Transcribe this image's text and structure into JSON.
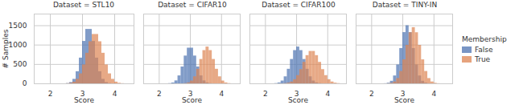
{
  "chart_data": {
    "type": "histogram",
    "xlabel": "Score",
    "ylabel": "# Samples",
    "legend_title": "Membership",
    "legend": "right",
    "grid": true,
    "xlim": [
      1.5,
      4.6
    ],
    "xticks": [
      2,
      3,
      4
    ],
    "ylim": [
      0,
      1800
    ],
    "yticks": [
      0,
      500,
      1000,
      1500
    ],
    "bins": [
      2.0,
      2.1,
      2.2,
      2.3,
      2.4,
      2.5,
      2.6,
      2.7,
      2.8,
      2.9,
      3.0,
      3.1,
      3.2,
      3.3,
      3.4,
      3.5,
      3.6,
      3.7,
      3.8,
      3.9,
      4.0,
      4.1,
      4.2,
      4.3,
      4.4,
      4.5,
      4.6
    ],
    "panels": [
      {
        "title": "Dataset = STL10",
        "series": [
          {
            "name": "False",
            "color": "#4c72b0",
            "values": [
              0,
              0,
              0,
              0,
              0,
              7,
              33,
              116,
              313,
              664,
              1095,
              1405,
              1405,
              1095,
              664,
              313,
              116,
              33,
              7,
              0,
              0,
              0,
              0,
              0,
              0,
              0
            ]
          },
          {
            "name": "True",
            "color": "#dd8452",
            "values": [
              0,
              0,
              0,
              0,
              0,
              4,
              14,
              44,
              116,
              257,
              488,
              789,
              1086,
              1274,
              1274,
              1086,
              789,
              488,
              257,
              116,
              44,
              14,
              4,
              0,
              0,
              0
            ]
          }
        ]
      },
      {
        "title": "Dataset = CIFAR10",
        "series": [
          {
            "name": "False",
            "color": "#4c72b0",
            "values": [
              0,
              0,
              0,
              5,
              22,
              76,
              205,
              435,
              717,
              921,
              921,
              717,
              435,
              205,
              76,
              22,
              5,
              0,
              0,
              0,
              0,
              0,
              0,
              0,
              0,
              0
            ]
          },
          {
            "name": "True",
            "color": "#dd8452",
            "values": [
              0,
              0,
              0,
              0,
              0,
              0,
              0,
              0,
              6,
              23,
              72,
              181,
              376,
              629,
              858,
              950,
              858,
              629,
              376,
              181,
              72,
              23,
              6,
              0,
              0,
              0
            ]
          }
        ]
      },
      {
        "title": "Dataset = CIFAR100",
        "series": [
          {
            "name": "False",
            "color": "#4c72b0",
            "values": [
              0,
              0,
              0,
              6,
              23,
              72,
              181,
              376,
              629,
              858,
              950,
              858,
              629,
              376,
              181,
              72,
              23,
              6,
              0,
              0,
              0,
              0,
              0,
              0,
              0,
              0
            ]
          },
          {
            "name": "True",
            "color": "#dd8452",
            "values": [
              0,
              0,
              0,
              0,
              0,
              0,
              6,
              18,
              47,
              107,
              212,
              367,
              554,
              728,
              836,
              836,
              728,
              554,
              367,
              212,
              107,
              47,
              18,
              6,
              0,
              0
            ]
          }
        ]
      },
      {
        "title": "Dataset = TINY-IN",
        "series": [
          {
            "name": "False",
            "color": "#4c72b0",
            "values": [
              0,
              0,
              0,
              0,
              3,
              17,
              66,
              203,
              488,
              911,
              1323,
              1500,
              1323,
              911,
              488,
              203,
              66,
              17,
              3,
              0,
              0,
              0,
              0,
              0,
              0,
              0
            ]
          },
          {
            "name": "True",
            "color": "#dd8452",
            "values": [
              0,
              0,
              0,
              0,
              0,
              3,
              14,
              48,
              136,
              319,
              619,
              993,
              1319,
              1450,
              1319,
              993,
              619,
              319,
              136,
              48,
              14,
              3,
              0,
              0,
              0,
              0
            ]
          }
        ]
      }
    ]
  }
}
